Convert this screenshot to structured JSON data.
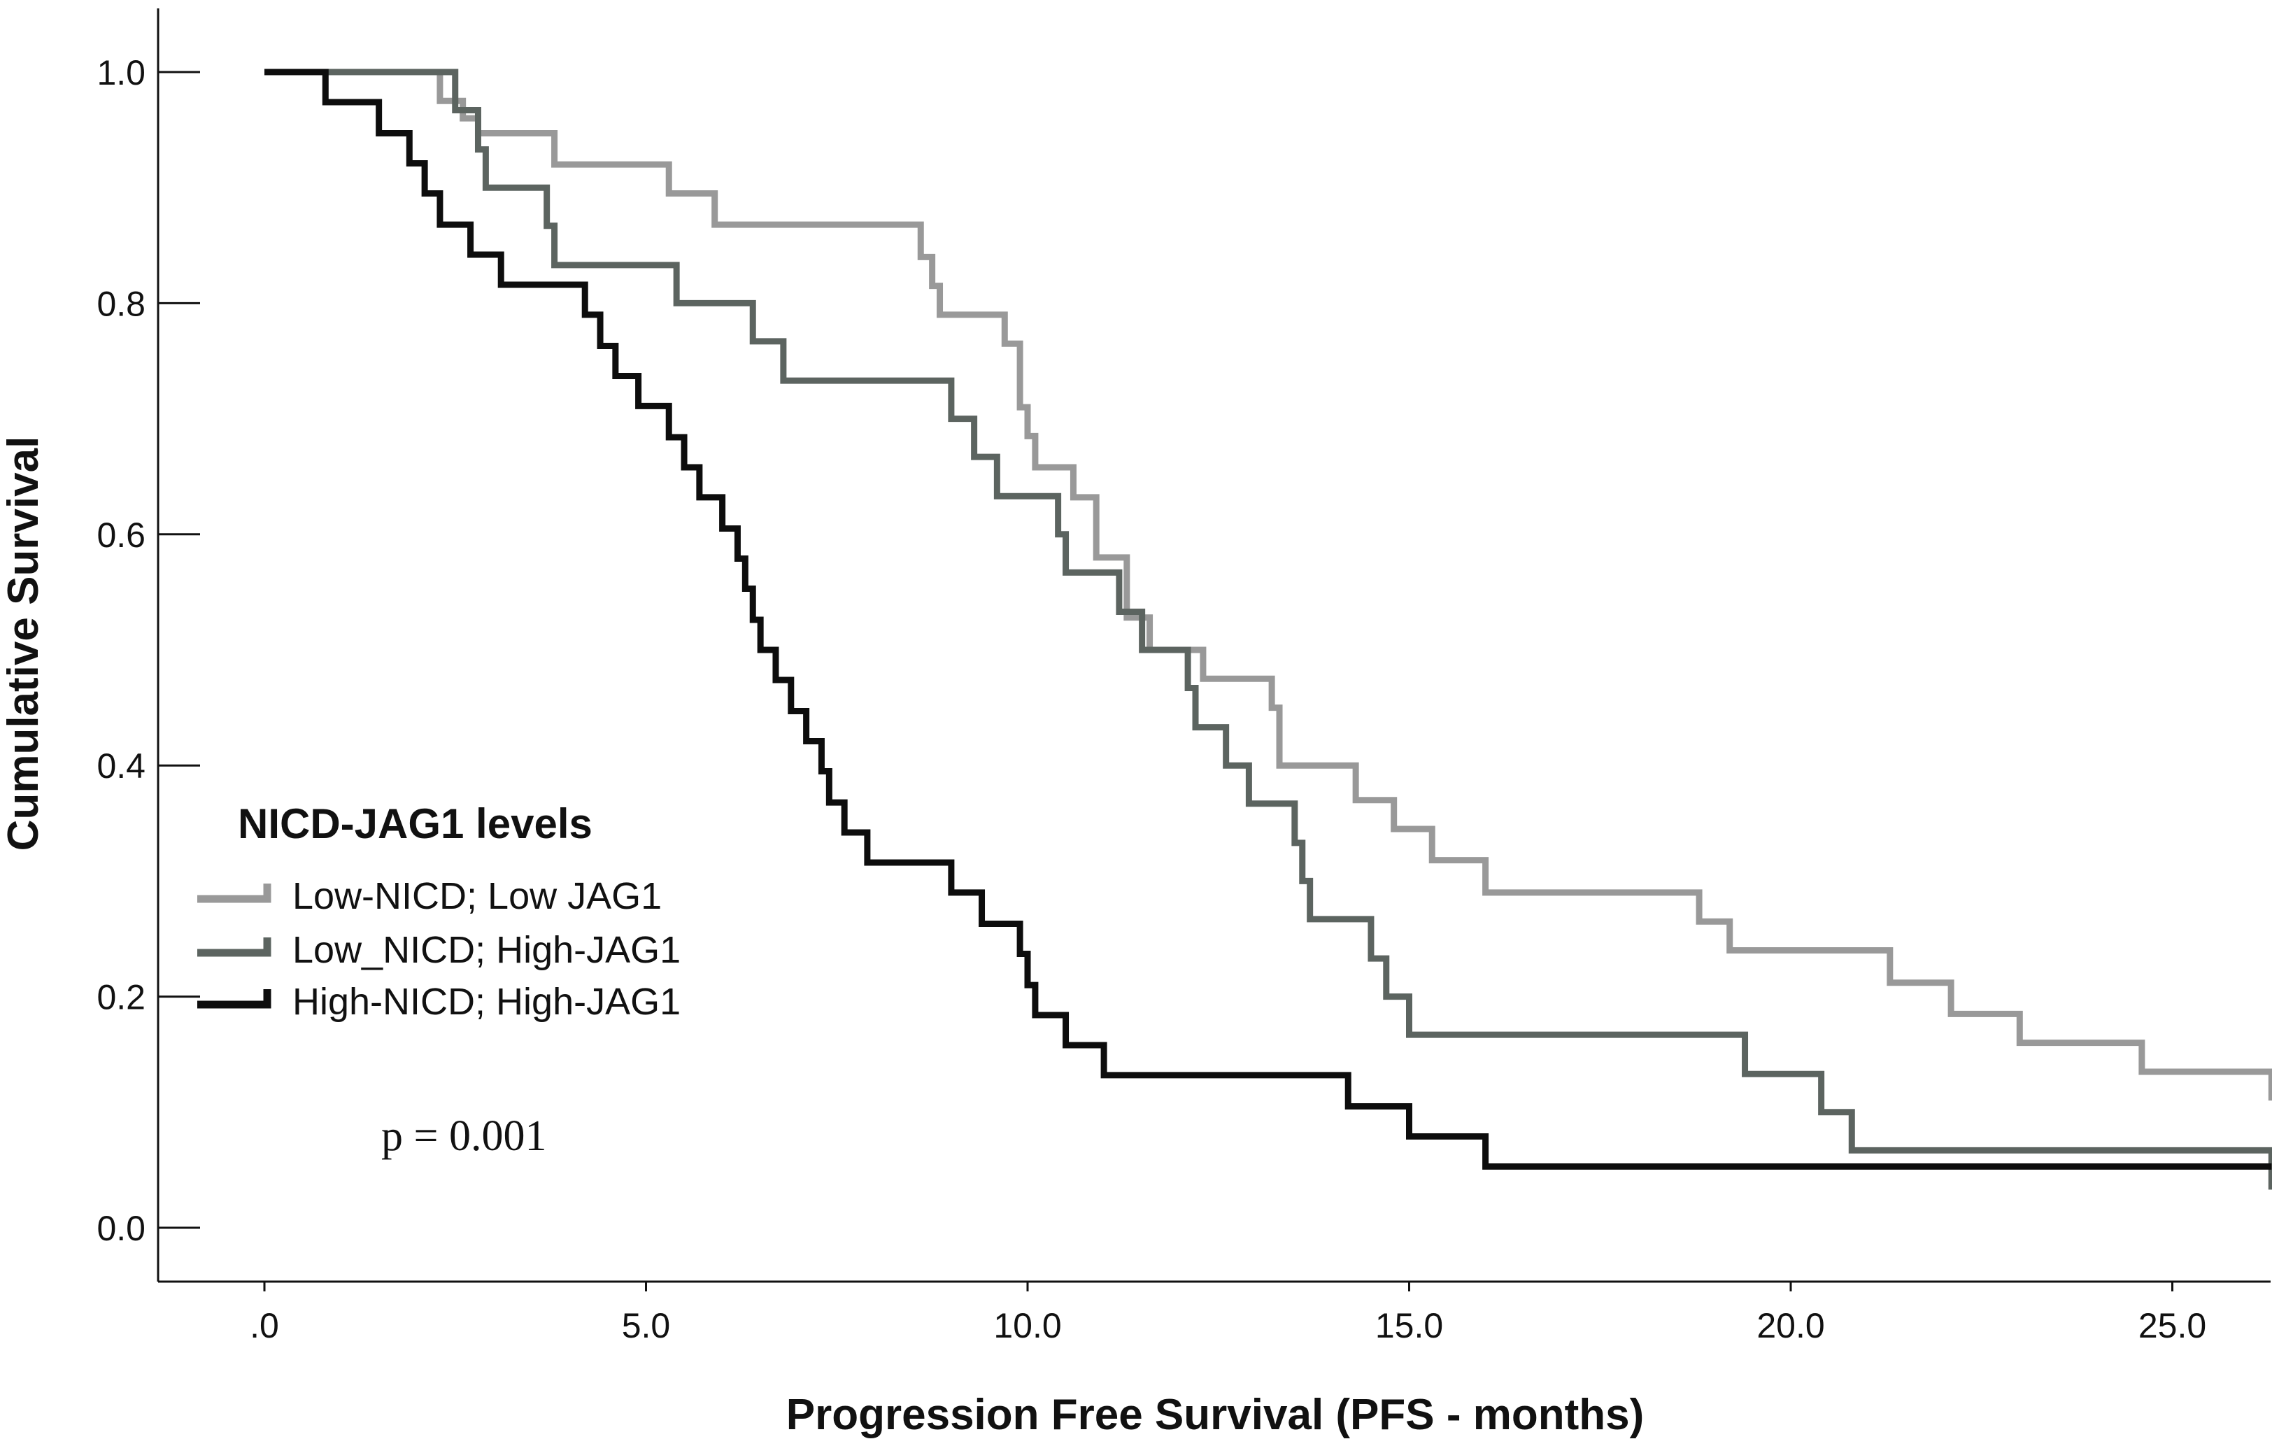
{
  "chart_data": {
    "type": "line",
    "subtype": "kaplan-meier-step",
    "title": "",
    "xlabel": "Progression Free Survival (PFS - months)",
    "ylabel": "Cumulative Survival",
    "xlim": [
      -1.4,
      26.3
    ],
    "ylim": [
      -0.05,
      1.06
    ],
    "xticks": [
      0,
      5,
      10,
      15,
      20,
      25
    ],
    "xtick_labels": [
      ".0",
      "5.0",
      "10.0",
      "15.0",
      "20.0",
      "25.0"
    ],
    "yticks": [
      0.0,
      0.2,
      0.4,
      0.6,
      0.8,
      1.0
    ],
    "ytick_labels": [
      "0.0",
      "0.2",
      "0.4",
      "0.6",
      "0.8",
      "1.0"
    ],
    "legend_title": "NICD-JAG1 levels",
    "annotation": "p = 0.001",
    "series": [
      {
        "name": "Low-NICD; Low JAG1",
        "color": "#999999",
        "x": [
          0,
          2.2,
          2.3,
          2.5,
          2.6,
          2.8,
          3.8,
          5.3,
          5.9,
          8.5,
          8.6,
          8.75,
          8.85,
          9.7,
          9.9,
          10.0,
          10.1,
          10.6,
          10.9,
          11.3,
          11.6,
          12.3,
          13.2,
          13.3,
          14.2,
          14.3,
          14.8,
          15.3,
          16.0,
          18.8,
          19.2,
          21.3,
          22.1,
          23.0,
          24.6,
          26.3
        ],
        "y": [
          1.0,
          1.0,
          0.975,
          0.975,
          0.96,
          0.947,
          0.92,
          0.895,
          0.868,
          0.868,
          0.84,
          0.815,
          0.79,
          0.765,
          0.71,
          0.685,
          0.658,
          0.632,
          0.58,
          0.528,
          0.5,
          0.475,
          0.45,
          0.4,
          0.4,
          0.37,
          0.345,
          0.318,
          0.29,
          0.265,
          0.24,
          0.212,
          0.185,
          0.16,
          0.135,
          0.11
        ]
      },
      {
        "name": "Low_NICD; High-JAG1",
        "color": "#5c6460",
        "x": [
          0,
          2.3,
          2.5,
          2.7,
          2.8,
          2.9,
          3.6,
          3.7,
          3.8,
          5.4,
          6.4,
          6.8,
          8.9,
          9.0,
          9.3,
          9.6,
          10.3,
          10.4,
          10.5,
          11.0,
          11.2,
          11.5,
          12.1,
          12.2,
          12.6,
          12.9,
          13.5,
          13.6,
          13.7,
          14.5,
          14.7,
          15.0,
          19.4,
          20.4,
          20.8,
          25.1,
          26.3
        ],
        "y": [
          1.0,
          1.0,
          0.967,
          0.967,
          0.933,
          0.9,
          0.9,
          0.867,
          0.833,
          0.8,
          0.767,
          0.733,
          0.733,
          0.7,
          0.667,
          0.633,
          0.633,
          0.6,
          0.567,
          0.567,
          0.533,
          0.5,
          0.467,
          0.433,
          0.4,
          0.367,
          0.333,
          0.3,
          0.267,
          0.233,
          0.2,
          0.167,
          0.133,
          0.1,
          0.067,
          0.067,
          0.033
        ]
      },
      {
        "name": "High-NICD; High-JAG1",
        "color": "#0d0d0d",
        "x": [
          0,
          0.8,
          1.5,
          1.9,
          2.1,
          2.3,
          2.7,
          3.1,
          4.2,
          4.4,
          4.6,
          4.9,
          5.3,
          5.5,
          5.7,
          6.0,
          6.2,
          6.3,
          6.4,
          6.5,
          6.7,
          6.9,
          7.1,
          7.3,
          7.4,
          7.6,
          7.9,
          9.0,
          9.4,
          9.9,
          10.0,
          10.1,
          10.5,
          11.0,
          14.2,
          15.0,
          16.0,
          26.3
        ],
        "y": [
          1.0,
          0.974,
          0.947,
          0.921,
          0.895,
          0.868,
          0.842,
          0.816,
          0.79,
          0.763,
          0.737,
          0.711,
          0.684,
          0.658,
          0.632,
          0.605,
          0.579,
          0.553,
          0.526,
          0.5,
          0.474,
          0.447,
          0.421,
          0.395,
          0.368,
          0.342,
          0.316,
          0.29,
          0.263,
          0.237,
          0.21,
          0.184,
          0.158,
          0.132,
          0.105,
          0.079,
          0.053,
          0.053
        ]
      }
    ]
  }
}
